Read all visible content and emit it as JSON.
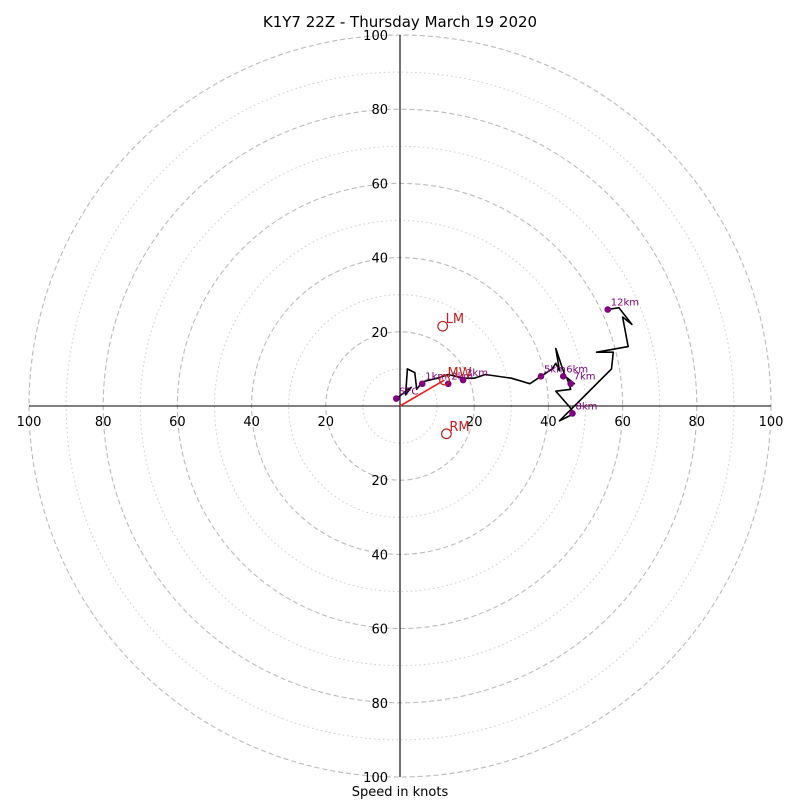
{
  "chart_data": {
    "type": "hodograph",
    "title": "K1Y7 22Z - Thursday March 19 2020",
    "xlabel": "Speed in knots",
    "xlim": [
      -100,
      100
    ],
    "ylim": [
      -100,
      100
    ],
    "major_rings": [
      20,
      40,
      60,
      80,
      100
    ],
    "minor_rings": [
      10,
      30,
      50,
      70,
      90
    ],
    "x_tick_labels": [
      {
        "value": -100,
        "label": "100"
      },
      {
        "value": -80,
        "label": "80"
      },
      {
        "value": -60,
        "label": "60"
      },
      {
        "value": -40,
        "label": "40"
      },
      {
        "value": -20,
        "label": "20"
      },
      {
        "value": 20,
        "label": "20"
      },
      {
        "value": 40,
        "label": "40"
      },
      {
        "value": 60,
        "label": "60"
      },
      {
        "value": 80,
        "label": "80"
      },
      {
        "value": 100,
        "label": "100"
      }
    ],
    "y_tick_labels": [
      {
        "value": 100,
        "label": "100"
      },
      {
        "value": 80,
        "label": "80"
      },
      {
        "value": 60,
        "label": "60"
      },
      {
        "value": 40,
        "label": "40"
      },
      {
        "value": 20,
        "label": "20"
      },
      {
        "value": -20,
        "label": "20"
      },
      {
        "value": -40,
        "label": "40"
      },
      {
        "value": -60,
        "label": "60"
      },
      {
        "value": -80,
        "label": "80"
      },
      {
        "value": -100,
        "label": "100"
      }
    ],
    "trace": [
      [
        -1,
        2
      ],
      [
        3,
        5
      ],
      [
        1.5,
        3
      ],
      [
        2,
        10
      ],
      [
        4,
        9
      ],
      [
        4.5,
        4.5
      ],
      [
        6,
        6.5
      ],
      [
        10,
        7.5
      ],
      [
        13,
        8.5
      ],
      [
        17,
        7.5
      ],
      [
        20,
        7.5
      ],
      [
        23,
        8.5
      ],
      [
        30,
        7.5
      ],
      [
        35,
        6
      ],
      [
        38,
        8
      ],
      [
        41,
        10
      ],
      [
        42,
        11.5
      ],
      [
        43,
        9.5
      ],
      [
        42,
        15.5
      ],
      [
        44.5,
        8
      ],
      [
        47,
        6
      ],
      [
        45,
        7.5
      ],
      [
        46,
        4.5
      ],
      [
        42,
        4
      ],
      [
        45.5,
        0
      ],
      [
        47,
        -2
      ],
      [
        45,
        -3
      ],
      [
        43,
        -4
      ],
      [
        50,
        3
      ],
      [
        57,
        10
      ],
      [
        57.5,
        14.5
      ],
      [
        53,
        14.5
      ],
      [
        61.5,
        16
      ],
      [
        60,
        24
      ],
      [
        62.5,
        22
      ],
      [
        59,
        26.5
      ],
      [
        56,
        26
      ]
    ],
    "shear_vector": [
      [
        0,
        0
      ],
      [
        12,
        7
      ]
    ],
    "height_markers": [
      {
        "label": "SFC",
        "x": -1,
        "y": 2
      },
      {
        "label": "1km",
        "x": 6,
        "y": 6
      },
      {
        "label": "2km",
        "x": 13,
        "y": 6
      },
      {
        "label": "3km",
        "x": 17,
        "y": 7
      },
      {
        "label": "5km",
        "x": 38,
        "y": 8
      },
      {
        "label": "6km",
        "x": 44,
        "y": 8
      },
      {
        "label": "7km",
        "x": 46,
        "y": 6
      },
      {
        "label": "8km",
        "x": 46.5,
        "y": -2
      },
      {
        "label": "12km",
        "x": 56,
        "y": 26
      }
    ],
    "storm_motions": [
      {
        "label": "LM",
        "x": 11.5,
        "y": 21.5
      },
      {
        "label": "MW",
        "x": 12,
        "y": 7
      },
      {
        "label": "RM",
        "x": 12.5,
        "y": -7.5
      }
    ],
    "colors": {
      "trace": "#000000",
      "shear": "#e8201e",
      "markers": "#800080",
      "storm_motion": "#c0201e",
      "rings": "#bbbbbb"
    }
  }
}
